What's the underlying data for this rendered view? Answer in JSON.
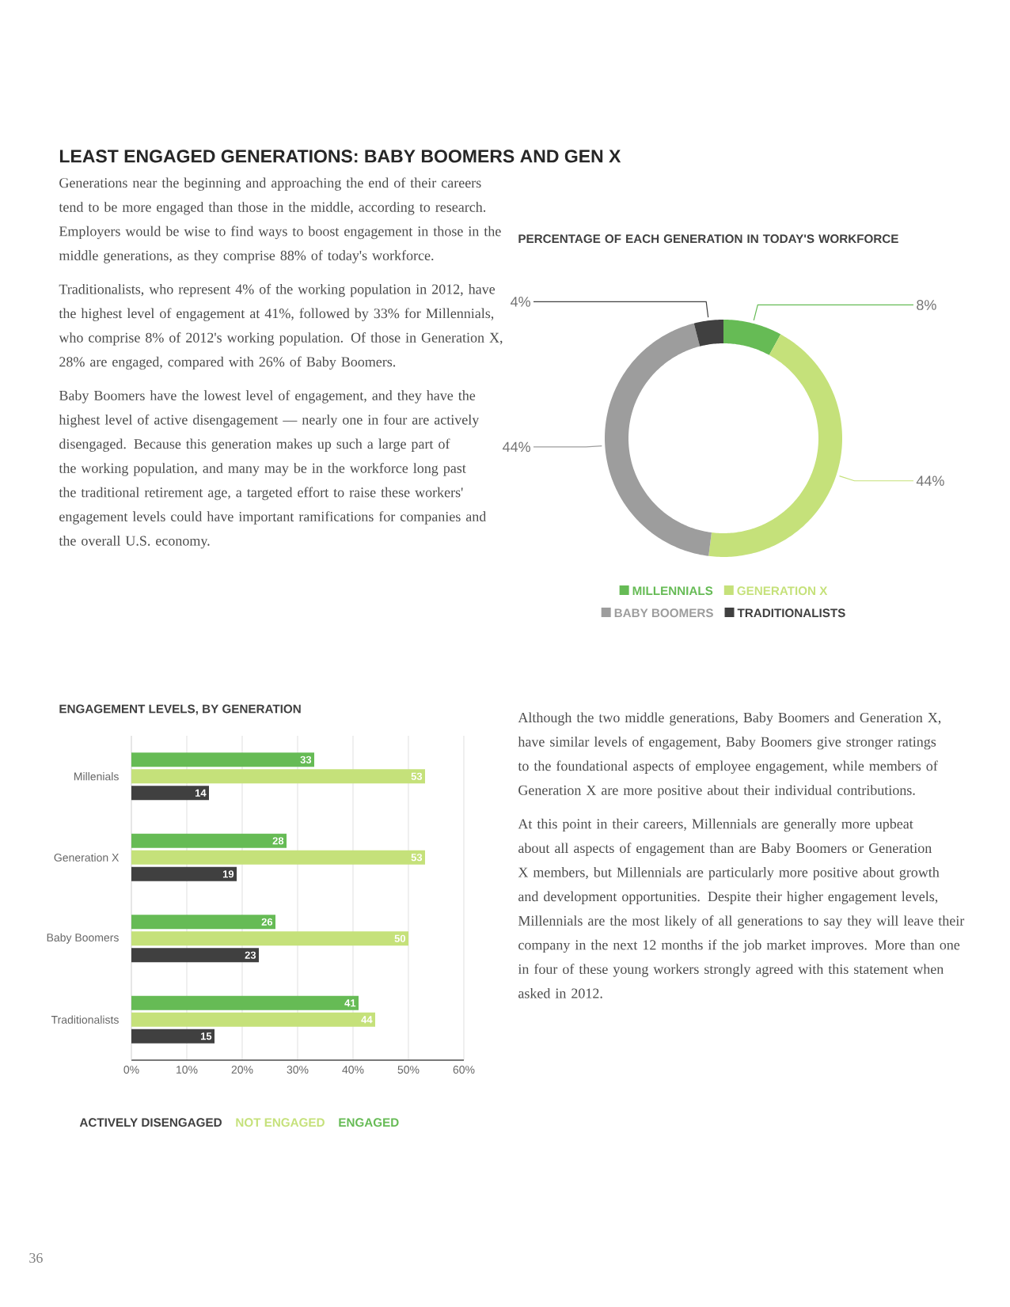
{
  "chart_data": [
    {
      "type": "other",
      "title": "LEAST ENGAGED GENERATIONS: BABY BOOMERS AND GEN X",
      "annotations": [
        "Generations near the beginning and approaching the end of their careers tend to be more engaged than those in the middle, according to research. Employers would be wise to find ways to boost engagement in those in the middle generations, as they comprise 88% of today's workforce.",
        "Traditionalists, who represent 4% of the working population in 2012, have the highest level of engagement at 41%, followed by 33% for Millennials, who comprise 8% of 2012's working population. Of those in Generation X, 28% are engaged, compared with 26% of Baby Boomers.",
        "Baby Boomers have the lowest level of engagement, and they have the highest level of active disengagement — nearly one in four are actively disengaged. Because this generation makes up such a large part of the working population, and many may be in the workforce long past the traditional retirement age, a targeted effort to raise these workers' engagement levels could have important ramifications for companies and the overall U.S. economy.",
        "Although the two middle generations, Baby Boomers and Generation X, have similar levels of engagement, Baby Boomers give stronger ratings to the foundational aspects of employee engagement, while members of Generation X are more positive about their individual contributions.",
        "At this point in their careers, Millennials are generally more upbeat about all aspects of engagement than are Baby Boomers or Generation X members, but Millennials are particularly more positive about growth and development opportunities. Despite their higher engagement levels, Millennials are the most likely of all generations to say they will leave their company in the next 12 months if the job market improves. More than one in four of these young workers strongly agreed with this statement when asked in 2012.",
        "36"
      ]
    },
    {
      "type": "donut",
      "title": "PERCENTAGE OF EACH GENERATION IN TODAY'S WORKFORCE",
      "categories": [
        "MILLENNIALS",
        "GENERATION X",
        "BABY BOOMERS",
        "TRADITIONALISTS"
      ],
      "values": [
        8,
        44,
        44,
        4
      ],
      "colors": [
        "#66bb55",
        "#c5e17a",
        "#9d9d9d",
        "#404040"
      ],
      "value_labels": [
        "8%",
        "44%",
        "44%",
        "4%"
      ],
      "legend": "bottom"
    },
    {
      "type": "bar",
      "orientation": "horizontal",
      "title": "ENGAGEMENT LEVELS, BY GENERATION",
      "categories": [
        "Millenials",
        "Generation X",
        "Baby Boomers",
        "Traditionalists"
      ],
      "series": [
        {
          "name": "ENGAGED",
          "color": "#66bb55",
          "values": [
            33,
            28,
            26,
            41
          ]
        },
        {
          "name": "NOT ENGAGED",
          "color": "#c5e17a",
          "values": [
            53,
            53,
            50,
            44
          ]
        },
        {
          "name": "ACTIVELY DISENGAGED",
          "color": "#404040",
          "values": [
            14,
            19,
            23,
            15
          ]
        }
      ],
      "xlim": [
        0,
        60
      ],
      "xticks": [
        {
          "value": 0,
          "label": "0%"
        },
        {
          "value": 10,
          "label": "10%"
        },
        {
          "value": 20,
          "label": "20%"
        },
        {
          "value": 30,
          "label": "30%"
        },
        {
          "value": 40,
          "label": "40%"
        },
        {
          "value": 50,
          "label": "50%"
        },
        {
          "value": 60,
          "label": "60%"
        }
      ],
      "grid": "x",
      "data_labels": true,
      "legend": "bottom"
    }
  ]
}
